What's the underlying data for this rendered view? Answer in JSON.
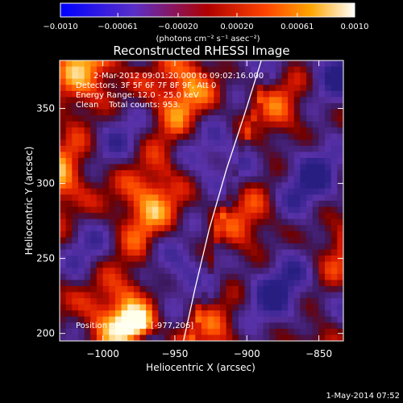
{
  "chart_data": {
    "type": "heatmap",
    "title": "Reconstructed RHESSI Image",
    "xlabel": "Heliocentric X (arcsec)",
    "ylabel": "Heliocentric Y (arcsec)",
    "xlim": [
      -1030,
      -833
    ],
    "ylim": [
      195,
      382
    ],
    "x_ticks": [
      -1000,
      -950,
      -900,
      -850
    ],
    "x_tick_labels": [
      "−1000",
      "−950",
      "−900",
      "−850"
    ],
    "y_ticks": [
      200,
      250,
      300,
      350
    ],
    "y_tick_labels": [
      "200",
      "250",
      "300",
      "350"
    ],
    "colorbar": {
      "range": [
        -0.001,
        0.001
      ],
      "ticks": [
        -0.001,
        -0.00061,
        -0.0002,
        0.0002,
        0.00061,
        0.001
      ],
      "tick_labels": [
        "−0.0010",
        "−0.00061",
        "−0.00020",
        "0.00020",
        "0.00061",
        "0.0010"
      ],
      "unit_label": "(photons cm⁻² s⁻¹ asec⁻²)",
      "colormap": "blue-purple-red-yellow-white"
    },
    "annotations": {
      "time_range": "2-Mar-2012 09:01:20.000 to 09:02:16.000",
      "detectors": "Detectors: 3F 5F 6F 7F 8F 9F, Att 0",
      "energy": "Energy Range: 12.0 - 25.0 keV",
      "clean": "Clean    Total counts: 953.",
      "peak": "Position of Peak = [-977,206]"
    },
    "peak_position": [
      -977,
      206
    ],
    "limb_curve": [
      [
        -944,
        195
      ],
      [
        -936,
        230
      ],
      [
        -926,
        270
      ],
      [
        -914,
        310
      ],
      [
        -902,
        345
      ],
      [
        -890,
        382
      ]
    ]
  },
  "footer": {
    "date_stamp": "1-May-2014 07:52"
  }
}
